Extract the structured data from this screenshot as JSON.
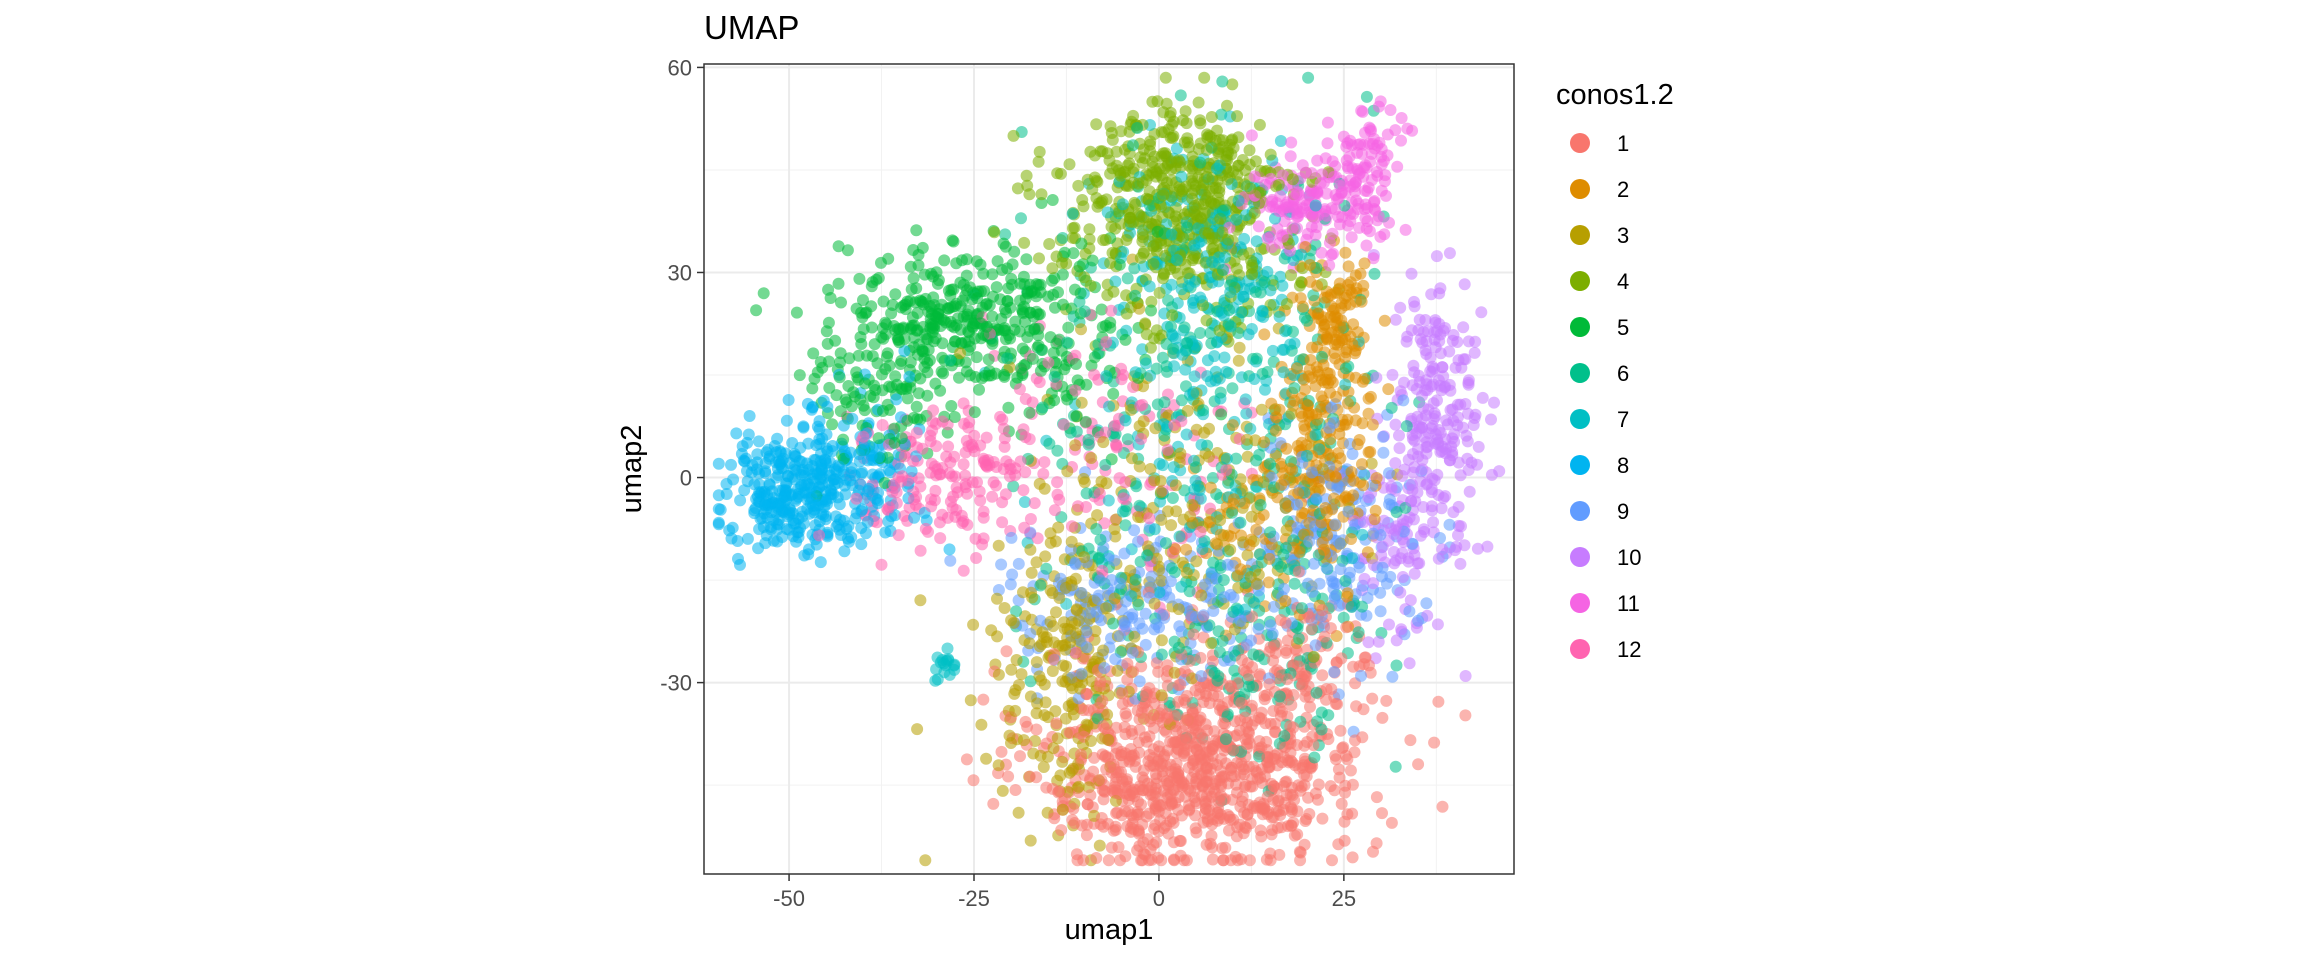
{
  "chart_data": {
    "type": "scatter",
    "title": "UMAP",
    "xlabel": "umap1",
    "ylabel": "umap2",
    "xlim": [
      -61.5,
      48
    ],
    "ylim": [
      -58,
      60.5
    ],
    "x_ticks": [
      -50,
      -25,
      0,
      25
    ],
    "y_ticks": [
      -30,
      0,
      30,
      60
    ],
    "x_tick_labels": [
      "-50",
      "-25",
      "0",
      "25"
    ],
    "y_tick_labels": [
      "-30",
      "0",
      "30",
      "60"
    ],
    "grid": true,
    "point_alpha": 0.55,
    "legend": {
      "title": "conos1.2",
      "position": "right",
      "entries": [
        "1",
        "2",
        "3",
        "4",
        "5",
        "6",
        "7",
        "8",
        "9",
        "10",
        "11",
        "12"
      ]
    },
    "series": [
      {
        "name": "1",
        "color": "#F8766D",
        "n": 1000,
        "clusters": [
          {
            "cx": 6,
            "cy": -41,
            "sx": 11,
            "sy": 8,
            "w": 0.82
          },
          {
            "cx": 20,
            "cy": -28,
            "sx": 5,
            "sy": 6,
            "w": 0.1
          },
          {
            "cx": -2,
            "cy": -47,
            "sx": 6,
            "sy": 4,
            "w": 0.08
          }
        ]
      },
      {
        "name": "2",
        "color": "#DE8C00",
        "n": 380,
        "clusters": [
          {
            "cx": 22,
            "cy": 4,
            "sx": 3.5,
            "sy": 10,
            "w": 0.6
          },
          {
            "cx": 24,
            "cy": 23,
            "sx": 2.5,
            "sy": 5,
            "w": 0.25
          },
          {
            "cx": 12,
            "cy": -8,
            "sx": 6,
            "sy": 5,
            "w": 0.15
          }
        ]
      },
      {
        "name": "3",
        "color": "#B79F00",
        "n": 440,
        "clusters": [
          {
            "cx": -12,
            "cy": -28,
            "sx": 5,
            "sy": 10,
            "w": 0.55
          },
          {
            "cx": 3,
            "cy": -4,
            "sx": 11,
            "sy": 14,
            "w": 0.45
          }
        ]
      },
      {
        "name": "4",
        "color": "#7CAE00",
        "n": 560,
        "clusters": [
          {
            "cx": 2,
            "cy": 42,
            "sx": 8,
            "sy": 6,
            "w": 0.75
          },
          {
            "cx": 6,
            "cy": 30,
            "sx": 8,
            "sy": 5,
            "w": 0.25
          }
        ]
      },
      {
        "name": "5",
        "color": "#00BA38",
        "n": 520,
        "clusters": [
          {
            "cx": -28,
            "cy": 24,
            "sx": 8,
            "sy": 5,
            "w": 0.6
          },
          {
            "cx": -38,
            "cy": 12,
            "sx": 5,
            "sy": 5,
            "w": 0.2
          },
          {
            "cx": -14,
            "cy": 20,
            "sx": 6,
            "sy": 8,
            "w": 0.2
          }
        ]
      },
      {
        "name": "6",
        "color": "#00C08B",
        "n": 440,
        "clusters": [
          {
            "cx": 5,
            "cy": 10,
            "sx": 12,
            "sy": 20,
            "w": 0.7
          },
          {
            "cx": 15,
            "cy": -25,
            "sx": 8,
            "sy": 8,
            "w": 0.3
          }
        ]
      },
      {
        "name": "7",
        "color": "#00BFC4",
        "n": 340,
        "clusters": [
          {
            "cx": 8,
            "cy": 32,
            "sx": 7,
            "sy": 8,
            "w": 0.55
          },
          {
            "cx": 5,
            "cy": 5,
            "sx": 10,
            "sy": 12,
            "w": 0.4
          },
          {
            "cx": -29,
            "cy": -27,
            "sx": 1,
            "sy": 1,
            "w": 0.05
          }
        ]
      },
      {
        "name": "8",
        "color": "#00B4F0",
        "n": 420,
        "clusters": [
          {
            "cx": -49,
            "cy": -2,
            "sx": 5,
            "sy": 4,
            "w": 0.7
          },
          {
            "cx": -40,
            "cy": 2,
            "sx": 5,
            "sy": 6,
            "w": 0.3
          }
        ]
      },
      {
        "name": "9",
        "color": "#619CFF",
        "n": 360,
        "clusters": [
          {
            "cx": 24,
            "cy": -10,
            "sx": 6,
            "sy": 8,
            "w": 0.5
          },
          {
            "cx": -4,
            "cy": -18,
            "sx": 9,
            "sy": 6,
            "w": 0.5
          }
        ]
      },
      {
        "name": "10",
        "color": "#C77CFF",
        "n": 300,
        "clusters": [
          {
            "cx": 38,
            "cy": 8,
            "sx": 3,
            "sy": 10,
            "w": 0.7
          },
          {
            "cx": 32,
            "cy": -8,
            "sx": 3,
            "sy": 8,
            "w": 0.3
          }
        ]
      },
      {
        "name": "11",
        "color": "#F564E3",
        "n": 240,
        "clusters": [
          {
            "cx": 22,
            "cy": 40,
            "sx": 5,
            "sy": 4,
            "w": 0.8
          },
          {
            "cx": 29,
            "cy": 48,
            "sx": 2,
            "sy": 3,
            "w": 0.2
          }
        ]
      },
      {
        "name": "12",
        "color": "#FF64B0",
        "n": 300,
        "clusters": [
          {
            "cx": -30,
            "cy": 0,
            "sx": 6,
            "sy": 5,
            "w": 0.5
          },
          {
            "cx": -8,
            "cy": 4,
            "sx": 10,
            "sy": 10,
            "w": 0.5
          }
        ]
      }
    ]
  }
}
